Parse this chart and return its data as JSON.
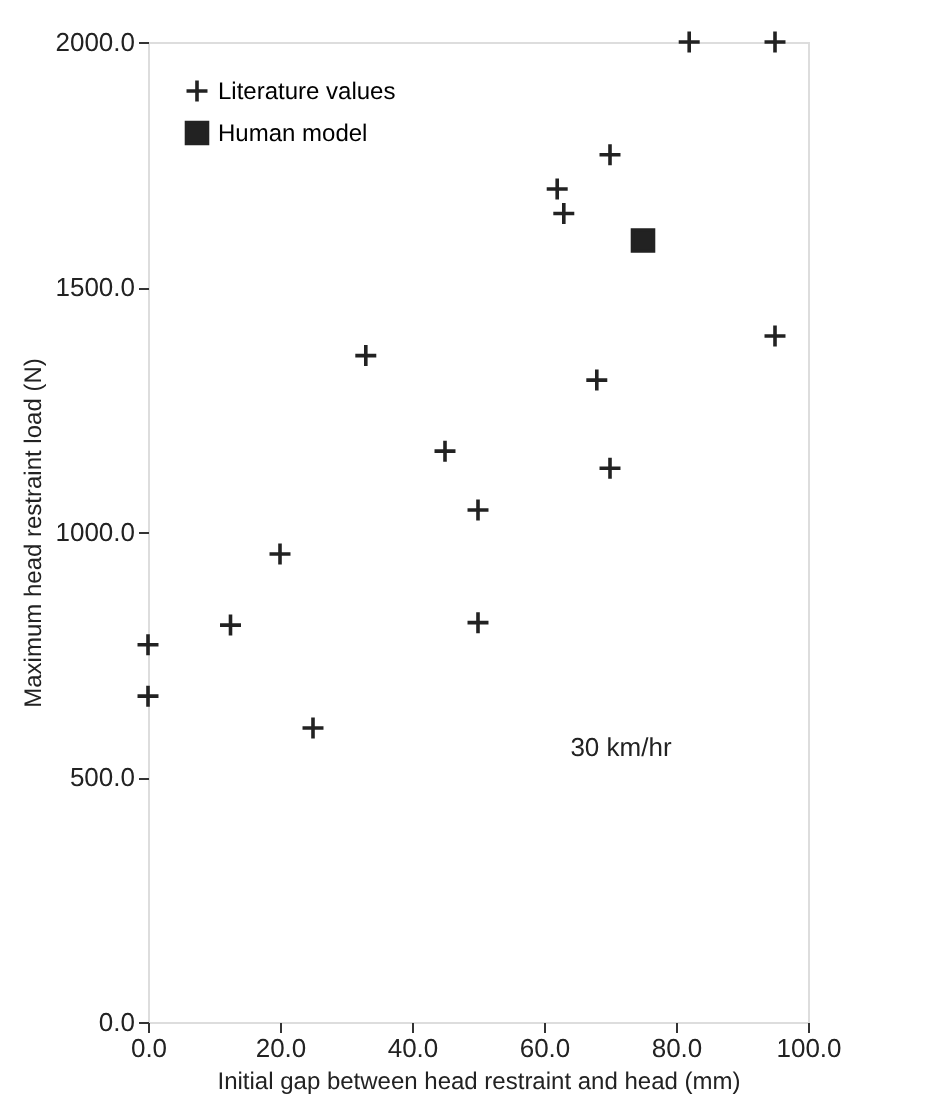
{
  "chart_data": {
    "type": "scatter",
    "xlabel": "Initial gap between head restraint and head (mm)",
    "ylabel": "Maximum head restraint load (N)",
    "xlim": [
      0,
      100
    ],
    "ylim": [
      0,
      2000
    ],
    "xticks": [
      {
        "value": 0,
        "label": "0.0"
      },
      {
        "value": 20,
        "label": "20.0"
      },
      {
        "value": 40,
        "label": "40.0"
      },
      {
        "value": 60,
        "label": "60.0"
      },
      {
        "value": 80,
        "label": "80.0"
      },
      {
        "value": 100,
        "label": "100.0"
      }
    ],
    "yticks": [
      {
        "value": 0,
        "label": "0.0"
      },
      {
        "value": 500,
        "label": "500.0"
      },
      {
        "value": 1000,
        "label": "1000.0"
      },
      {
        "value": 1500,
        "label": "1500.0"
      },
      {
        "value": 2000,
        "label": "2000.0"
      }
    ],
    "grid": false,
    "legend": "top left",
    "annotations": [
      "30 km/hr"
    ],
    "series": [
      {
        "name": "Literature values",
        "marker": "cross",
        "color": "#222222",
        "x": [
          0,
          0,
          12.5,
          20,
          25,
          33,
          45,
          50,
          50,
          62,
          63,
          68,
          70,
          70,
          82,
          95,
          95
        ],
        "values": [
          770,
          665,
          810,
          955,
          600,
          1360,
          1165,
          1045,
          815,
          1700,
          1650,
          1310,
          1770,
          1130,
          2000,
          2000,
          1400
        ]
      },
      {
        "name": "Human model",
        "marker": "square",
        "color": "#222222",
        "x": [
          75
        ],
        "values": [
          1595
        ]
      }
    ]
  }
}
